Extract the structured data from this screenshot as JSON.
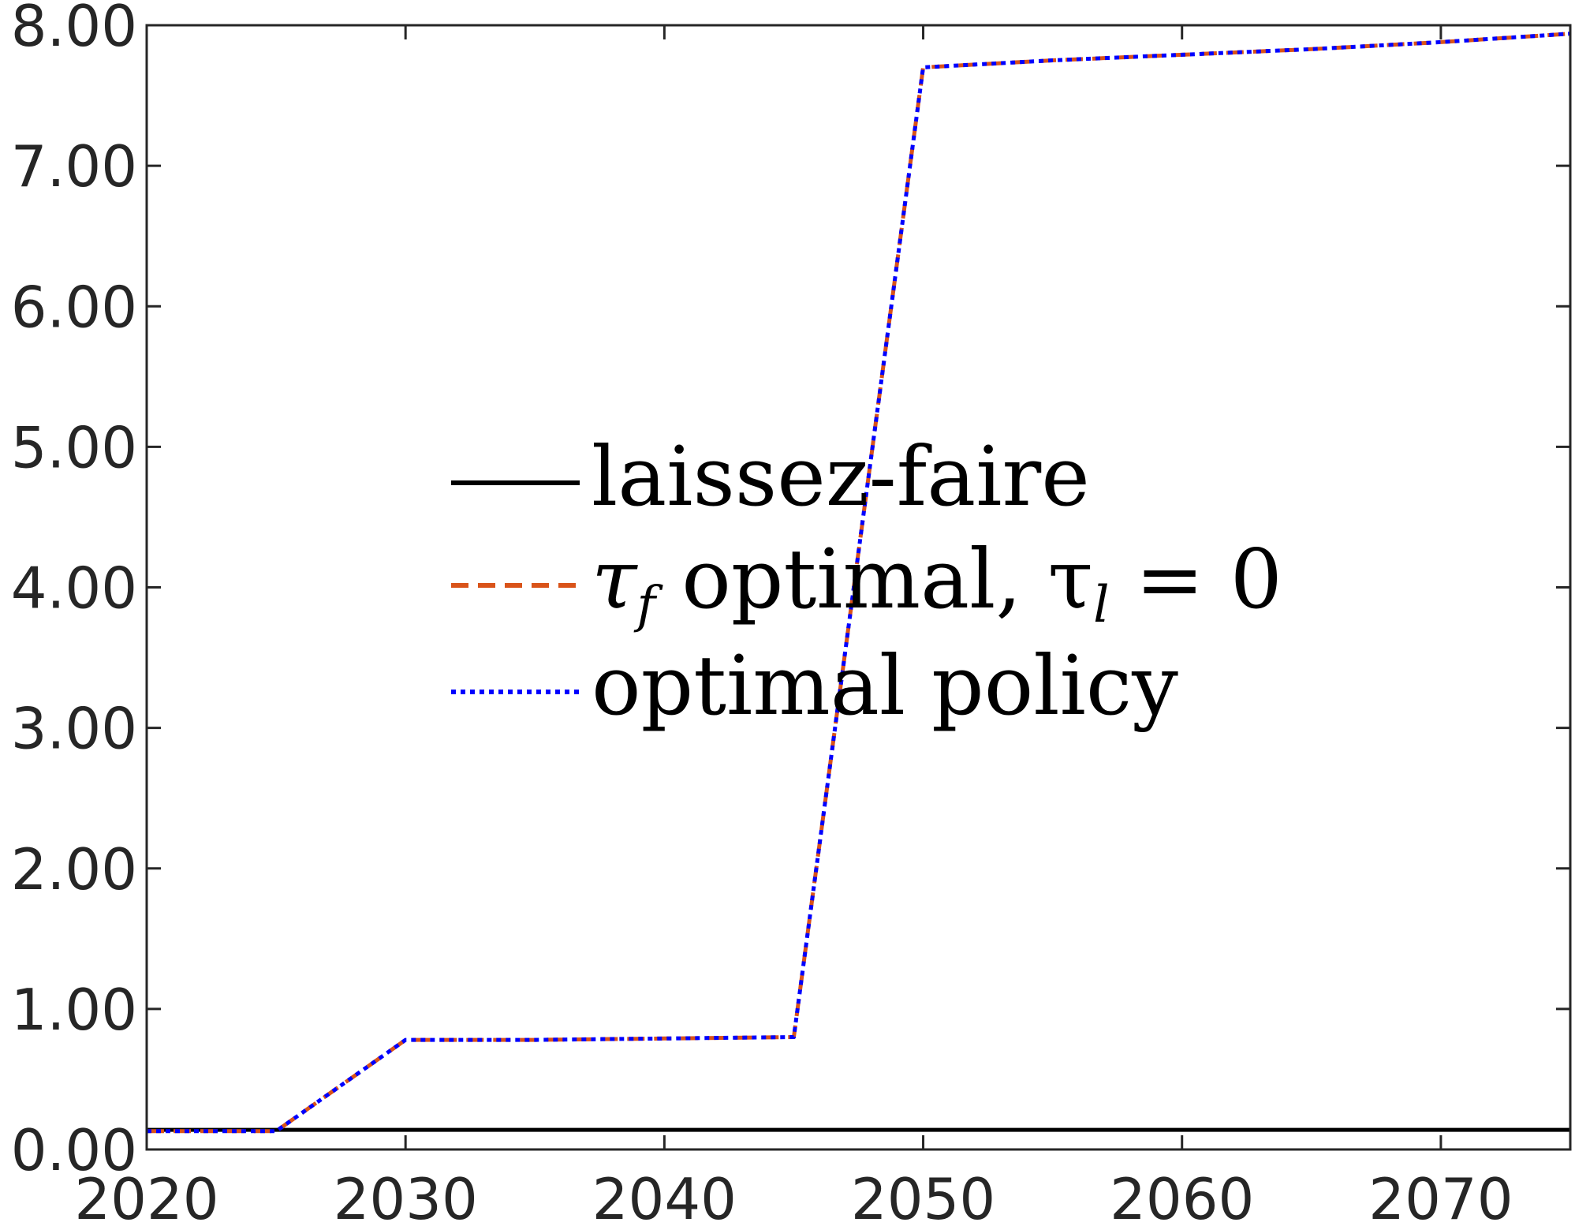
{
  "chart_data": {
    "type": "line",
    "title": "",
    "xlabel": "",
    "ylabel": "",
    "xlim": [
      2020,
      2075
    ],
    "ylim": [
      0,
      8
    ],
    "grid": false,
    "box": true,
    "legend_position": "center",
    "xticks": [
      "2020",
      "2030",
      "2040",
      "2050",
      "2060",
      "2070"
    ],
    "yticks": [
      "0.00",
      "1.00",
      "2.00",
      "3.00",
      "4.00",
      "5.00",
      "6.00",
      "7.00",
      "8.00"
    ],
    "series": [
      {
        "name": "laissez-faire",
        "color": "#000000",
        "style": "solid",
        "x": [
          2020,
          2025,
          2030,
          2035,
          2040,
          2045,
          2050,
          2055,
          2060,
          2065,
          2070,
          2075
        ],
        "y": [
          0.14,
          0.14,
          0.14,
          0.14,
          0.14,
          0.14,
          0.14,
          0.14,
          0.14,
          0.14,
          0.14,
          0.14
        ]
      },
      {
        "name": "τf optimal, τl = 0",
        "color": "#D95319",
        "style": "dashed",
        "x": [
          2020,
          2025,
          2030,
          2035,
          2040,
          2045,
          2050,
          2055,
          2060,
          2065,
          2070,
          2075
        ],
        "y": [
          0.13,
          0.13,
          0.78,
          0.78,
          0.79,
          0.8,
          7.7,
          7.75,
          7.79,
          7.83,
          7.88,
          7.94
        ]
      },
      {
        "name": "optimal policy",
        "color": "#0000FF",
        "style": "dotted",
        "x": [
          2020,
          2025,
          2030,
          2035,
          2040,
          2045,
          2050,
          2055,
          2060,
          2065,
          2070,
          2075
        ],
        "y": [
          0.13,
          0.13,
          0.78,
          0.78,
          0.79,
          0.8,
          7.7,
          7.75,
          7.79,
          7.83,
          7.88,
          7.94
        ]
      }
    ],
    "legend": {
      "entries": [
        {
          "label": "laissez-faire"
        },
        {
          "label_parts": [
            "τ",
            "f",
            " optimal, τ",
            "l",
            " = 0"
          ]
        },
        {
          "label": "optimal policy"
        }
      ]
    }
  }
}
